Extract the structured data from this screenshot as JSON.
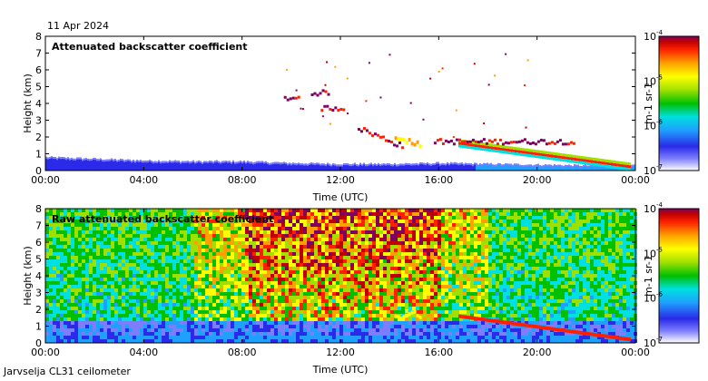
{
  "date_label": "11 Apr 2024",
  "station_label": "Jarvselja CL31 ceilometer",
  "colors": {
    "scale": [
      "#ffffff",
      "#7d7dff",
      "#2a2ae8",
      "#1fa0ff",
      "#00e0e0",
      "#00c000",
      "#a0e000",
      "#ffff00",
      "#ffa000",
      "#ff2000",
      "#c00000",
      "#800060"
    ],
    "axis": "#000000"
  },
  "chart_data": [
    {
      "type": "heatmap",
      "title": "Attenuated backscatter coefficient",
      "xlabel": "Time (UTC)",
      "ylabel": "Height (km)",
      "x_ticks": [
        "00:00",
        "04:00",
        "08:00",
        "12:00",
        "16:00",
        "20:00",
        "00:00"
      ],
      "x_range_hours": [
        0,
        24
      ],
      "y_ticks": [
        "0",
        "1",
        "2",
        "3",
        "4",
        "5",
        "6",
        "7",
        "8"
      ],
      "ylim": [
        0,
        8
      ],
      "colorbar": {
        "ticks": [
          "10",
          "10",
          "10",
          "10"
        ],
        "exponents": [
          "-7",
          "-6",
          "-5",
          "-4"
        ],
        "label": "m-1 sr-1",
        "range": [
          1e-07,
          0.0001
        ]
      },
      "features": {
        "boundary_layer_top_km": [
          [
            0,
            0.8
          ],
          [
            2,
            0.7
          ],
          [
            4,
            0.6
          ],
          [
            6,
            0.55
          ],
          [
            8,
            0.55
          ],
          [
            10,
            0.45
          ],
          [
            12,
            0.4
          ],
          [
            14,
            0.4
          ],
          [
            16,
            0.45
          ],
          [
            18,
            0.4
          ],
          [
            20,
            0.35
          ],
          [
            22,
            0.3
          ],
          [
            24,
            0.3
          ]
        ],
        "cloud_layers": [
          {
            "start_h": 9.7,
            "end_h": 10.3,
            "height_km": 4.4
          },
          {
            "start_h": 10.8,
            "end_h": 11.5,
            "height_km": 4.7
          },
          {
            "start_h": 11.2,
            "end_h": 12.1,
            "height_km": 3.8
          },
          {
            "start_h": 12.7,
            "end_h": 14.5,
            "height_km": 2.6
          },
          {
            "start_h": 15.8,
            "end_h": 21.5,
            "height_km": 1.8
          }
        ]
      }
    },
    {
      "type": "heatmap",
      "title": "Raw attenuated backscatter coefficient",
      "xlabel": "Time (UTC)",
      "ylabel": "Height (km)",
      "x_ticks": [
        "00:00",
        "04:00",
        "08:00",
        "12:00",
        "16:00",
        "20:00",
        "00:00"
      ],
      "x_range_hours": [
        0,
        24
      ],
      "y_ticks": [
        "0",
        "1",
        "2",
        "3",
        "4",
        "5",
        "6",
        "7",
        "8"
      ],
      "ylim": [
        0,
        8
      ],
      "colorbar": {
        "ticks": [
          "10",
          "10",
          "10",
          "10"
        ],
        "exponents": [
          "-7",
          "-6",
          "-5",
          "-4"
        ],
        "label": "m-1 sr-1",
        "range": [
          1e-07,
          0.0001
        ]
      }
    }
  ]
}
